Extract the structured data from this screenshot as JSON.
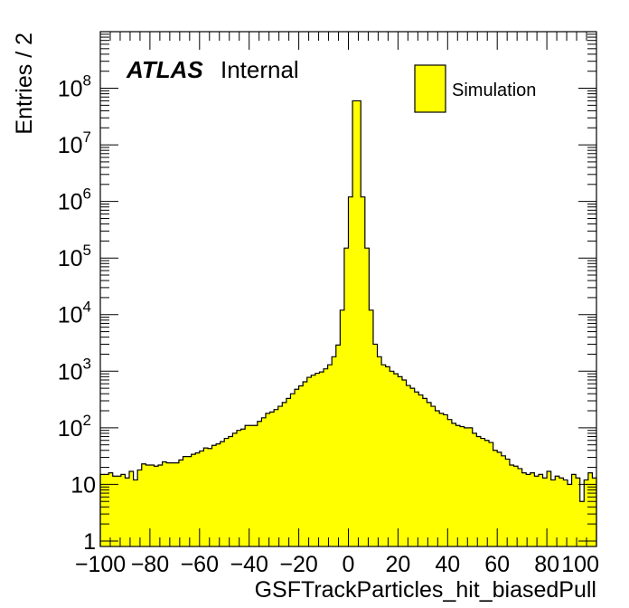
{
  "chart_data": {
    "type": "bar",
    "histogram": true,
    "title": "",
    "xlabel": "GSFTrackParticles_hit_biasedPull",
    "ylabel": "Entries / 2",
    "xlim": [
      -100,
      100
    ],
    "ylim": [
      0.8,
      1000000000
    ],
    "yscale": "log",
    "bin_width": 2,
    "x_ticks": [
      "−100",
      "−80",
      "−60",
      "−40",
      "−20",
      "0",
      "20",
      "40",
      "60",
      "80",
      "100"
    ],
    "y_ticks": [
      {
        "base": "1",
        "exp": ""
      },
      {
        "base": "10",
        "exp": ""
      },
      {
        "base": "10",
        "exp": "2"
      },
      {
        "base": "10",
        "exp": "3"
      },
      {
        "base": "10",
        "exp": "4"
      },
      {
        "base": "10",
        "exp": "5"
      },
      {
        "base": "10",
        "exp": "6"
      },
      {
        "base": "10",
        "exp": "7"
      },
      {
        "base": "10",
        "exp": "8"
      }
    ],
    "fill_color": "#ffff00",
    "line_color": "#000000",
    "legend": {
      "position": "top-right",
      "entries": [
        "Simulation"
      ]
    },
    "atlas_label": {
      "bold": "ATLAS",
      "text": "Internal"
    },
    "series": [
      {
        "name": "Simulation",
        "values": [
          15,
          15,
          16,
          14,
          14,
          15,
          13,
          17,
          12,
          18,
          23,
          22,
          22,
          21,
          22,
          25,
          24,
          24,
          24,
          27,
          31,
          31,
          34,
          36,
          39,
          44,
          43,
          49,
          52,
          57,
          65,
          70,
          80,
          90,
          95,
          110,
          110,
          110,
          130,
          150,
          180,
          190,
          210,
          240,
          280,
          330,
          400,
          480,
          550,
          650,
          780,
          850,
          920,
          970,
          1100,
          1300,
          1800,
          2900,
          12000,
          150000,
          1200000,
          60000000,
          60000000,
          1200000,
          150000,
          12000,
          3000,
          1800,
          1300,
          1200,
          1000,
          900,
          800,
          700,
          560,
          500,
          430,
          380,
          330,
          280,
          240,
          200,
          180,
          170,
          140,
          120,
          110,
          105,
          100,
          100,
          80,
          70,
          65,
          60,
          55,
          40,
          37,
          32,
          28,
          22,
          21,
          19,
          16,
          15,
          16,
          14,
          15,
          13,
          17,
          12,
          14,
          13,
          12,
          10,
          15,
          13,
          5,
          12,
          16,
          13
        ]
      }
    ]
  }
}
